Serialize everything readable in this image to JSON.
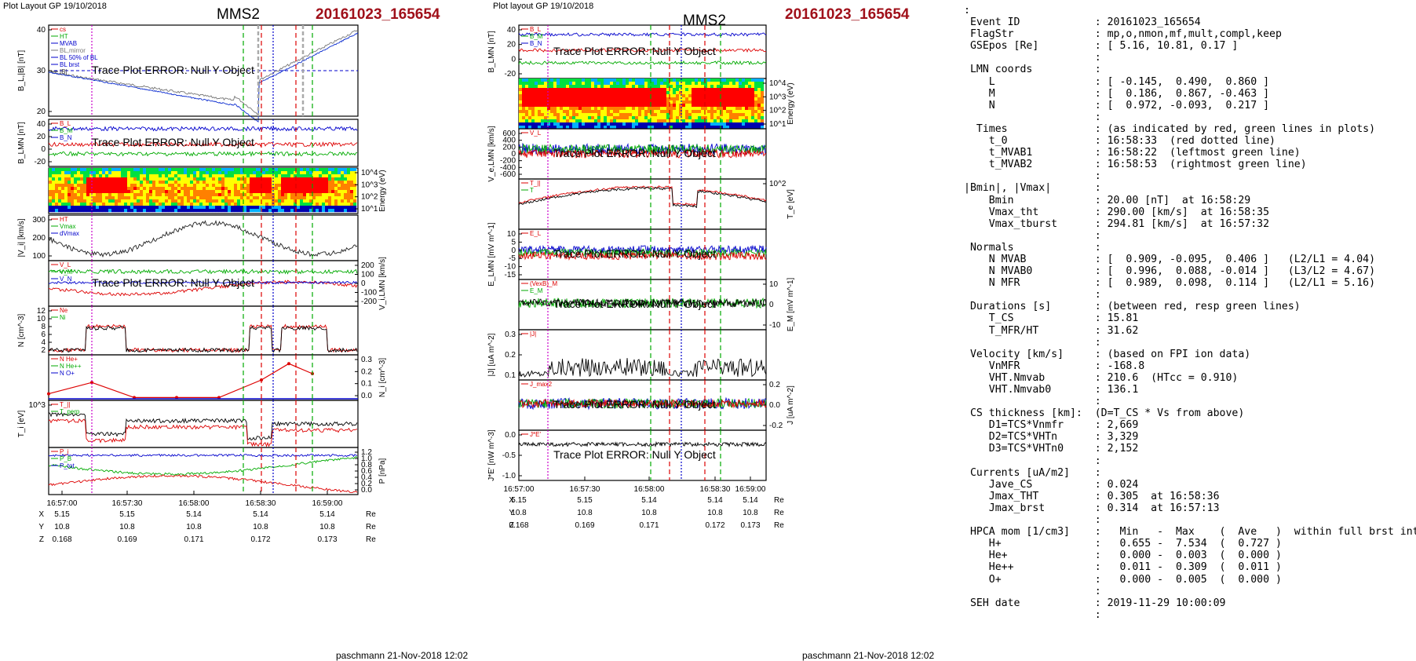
{
  "left": {
    "header": "Plot Layout GP 19/10/2018",
    "title": "MMS2",
    "event": "20161023_165654",
    "footer": "paschmann 21-Nov-2018 12:02",
    "time_ticks": [
      "16:57:00",
      "16:57:30",
      "16:58:00",
      "16:58:30",
      "16:59:00"
    ],
    "coords": {
      "X": [
        "5.15",
        "5.15",
        "5.14",
        "5.14",
        "5.14"
      ],
      "Y": [
        "10.8",
        "10.8",
        "10.8",
        "10.8",
        "10.8"
      ],
      "Z": [
        "0.168",
        "0.169",
        "0.171",
        "0.172",
        "0.173"
      ],
      "unit": "Re"
    },
    "panels": [
      {
        "id": "bl",
        "ylabel": "B_L,|B| [nT]",
        "yticks": [
          "40",
          "30",
          "20"
        ],
        "legend": [
          "cs",
          "HT",
          "MVAB",
          "BL,mirror",
          "BL 50% of BL",
          "BL brst",
          "|B|"
        ],
        "error": "Trace Plot ERROR: Null Y Object"
      },
      {
        "id": "blmn",
        "ylabel": "B_LMN [nT]",
        "yticks": [
          "40",
          "20",
          "0",
          "-20"
        ],
        "legend": [
          "B_L",
          "B_M",
          "B_N"
        ],
        "error": "Trace Plot ERROR: Null Y Object"
      },
      {
        "id": "spec",
        "ylabel_right": "Energy (eV)",
        "yticks_right": [
          "10^4",
          "10^3",
          "10^2",
          "10^1"
        ]
      },
      {
        "id": "vi",
        "ylabel": "|V_i| [km/s]",
        "yticks": [
          "300",
          "200",
          "100"
        ],
        "legend": [
          "HT",
          "Vmax",
          "dVmax"
        ]
      },
      {
        "id": "vilmn",
        "ylabel_right": "V_i,LMN [km/s]",
        "yticks_right": [
          "200",
          "100",
          "0",
          "-100",
          "-200"
        ],
        "legend": [
          "V_L",
          "V_M",
          "V_N"
        ],
        "error": "Trace Plot ERROR: Null Y Object"
      },
      {
        "id": "n",
        "ylabel": "N [cm^-3]",
        "yticks": [
          "12",
          "10",
          "8",
          "6",
          "4",
          "2"
        ],
        "legend": [
          "Ne",
          "Ni"
        ]
      },
      {
        "id": "ni",
        "ylabel_right": "N_i [cm^-3]",
        "yticks_right": [
          "0.3",
          "0.2",
          "0.1",
          "0.0"
        ],
        "legend": [
          "N He+",
          "N He++",
          "N O+"
        ]
      },
      {
        "id": "ti",
        "ylabel": "T_i [eV]",
        "yticks": [
          "10^3"
        ],
        "legend": [
          "T_||",
          "T_perp"
        ]
      },
      {
        "id": "p",
        "ylabel_right": "P [nPa]",
        "yticks_right": [
          "1.2",
          "1.0",
          "0.8",
          "0.6",
          "0.4",
          "0.2",
          "0.0"
        ],
        "legend": [
          "P_i",
          "P_B",
          "P_tot"
        ]
      }
    ]
  },
  "middle": {
    "header": "Plot layout GP 19/10/2018",
    "title": "MMS2",
    "event": "20161023_165654",
    "footer": "paschmann 21-Nov-2018 12:02",
    "time_ticks": [
      "16:57:00",
      "16:57:30",
      "16:58:00",
      "16:58:30",
      "16:59:00"
    ],
    "coords": {
      "X": [
        "5.15",
        "5.15",
        "5.14",
        "5.14",
        "5.14"
      ],
      "Y": [
        "10.8",
        "10.8",
        "10.8",
        "10.8",
        "10.8"
      ],
      "Z": [
        "0.168",
        "0.169",
        "0.171",
        "0.172",
        "0.173"
      ],
      "unit": "Re"
    },
    "panels": [
      {
        "id": "blmn",
        "ylabel": "B_LMN [nT]",
        "yticks": [
          "40",
          "20",
          "0",
          "-20"
        ],
        "legend": [
          "B_L",
          "B_M",
          "B_N"
        ],
        "error": "Trace Plot ERROR: Null Y Object"
      },
      {
        "id": "espec",
        "ylabel_right": "Energy (eV)",
        "yticks_right": [
          "10^4",
          "10^3",
          "10^2",
          "10^1"
        ]
      },
      {
        "id": "ve",
        "ylabel": "V_e,LMN [km/s]",
        "yticks": [
          "600",
          "400",
          "200",
          "0",
          "-200",
          "-400",
          "-600"
        ],
        "legend": [
          "V_L"
        ],
        "error": "Trace Plot ERROR: Null Y Object"
      },
      {
        "id": "te",
        "ylabel_right": "T_e [eV]",
        "yticks_right": [
          "10^2"
        ],
        "legend": [
          "T_||",
          "T"
        ]
      },
      {
        "id": "e",
        "ylabel": "E_LMN [mV m^-1]",
        "yticks": [
          "10",
          "5",
          "0",
          "-5",
          "-10",
          "-15"
        ],
        "legend": [
          "E_L"
        ],
        "error": "Trace Plot ERROR: Null Y Object"
      },
      {
        "id": "em",
        "ylabel_right": "E_M [mV m^-1]",
        "yticks_right": [
          "10",
          "0",
          "-10"
        ],
        "legend": [
          "(VexB)_M",
          "E_M"
        ],
        "error": "Trace Plot ERROR: Null Y Object"
      },
      {
        "id": "j",
        "ylabel": "|J| [uA m^-2]",
        "yticks": [
          "0.3",
          "0.2",
          "0.1"
        ],
        "legend": [
          "|J|"
        ]
      },
      {
        "id": "jlmn",
        "ylabel_right": "J [uA m^-2]",
        "yticks_right": [
          "0.2",
          "0.0",
          "-0.2"
        ],
        "legend": [
          "J_max2"
        ],
        "error": "Trace Plot ERROR: Null Y Object"
      },
      {
        "id": "je",
        "ylabel": "J*E' [nW m^-3]",
        "yticks": [
          "0.0",
          "-0.5",
          "-1.0"
        ],
        "legend": [
          "J*E'"
        ],
        "error": "Trace Plot ERROR: Null Y Object"
      }
    ]
  },
  "info": [
    ":",
    " Event ID            : 20161023_165654",
    " FlagStr             : mp,o,nmon,mf,mult,compl,keep",
    " GSEpos [Re]         : [ 5.16, 10.81, 0.17 ]",
    "                     :",
    " LMN coords          :",
    "    L                : [ -0.145,  0.490,  0.860 ]",
    "    M                : [  0.186,  0.867, -0.463 ]",
    "    N                : [  0.972, -0.093,  0.217 ]",
    "                     :",
    "  Times              : (as indicated by red, green lines in plots)",
    "    t_0              : 16:58:33  (red dotted line)",
    "    t_MVAB1          : 16:58:22  (leftmost green line)",
    "    t_MVAB2          : 16:58:53  (rightmost green line)",
    "                     :",
    "|Bmin|, |Vmax|       :",
    "    Bmin             : 20.00 [nT]  at 16:58:29",
    "    Vmax_tht         : 290.00 [km/s]  at 16:58:35",
    "    Vmax_tburst      : 294.81 [km/s]  at 16:57:32",
    "                     :",
    " Normals             :",
    "    N MVAB           : [  0.909, -0.095,  0.406 ]   (L2/L1 = 4.04)",
    "    N MVAB0          : [  0.996,  0.088, -0.014 ]   (L3/L2 = 4.67)",
    "    N MFR            : [  0.989,  0.098,  0.114 ]   (L2/L1 = 5.16)",
    "                     :",
    " Durations [s]       : (between red, resp green lines)",
    "    T_CS             : 15.81",
    "    T_MFR/HT         : 31.62",
    "                     :",
    " Velocity [km/s]     : (based on FPI ion data)",
    "    VnMFR            : -168.8",
    "    VHT.Nmvab        : 210.6  (HTcc = 0.910)",
    "    VHT.Nmvab0       : 136.1",
    "                     :",
    " CS thickness [km]:  (D=T_CS * Vs from above)",
    "    D1=TCS*Vnmfr     : 2,669",
    "    D2=TCS*VHTn      : 3,329",
    "    D3=TCS*VHTn0     : 2,152",
    "                     :",
    " Currents [uA/m2]    :",
    "    Jave_CS          : 0.024",
    "    Jmax_THT         : 0.305  at 16:58:36",
    "    Jmax_brst        : 0.314  at 16:57:13",
    "                     :",
    " HPCA mom [1/cm3]    :   Min   -  Max    (  Ave   )  within full brst int",
    "    H+               :   0.655 -  7.534  (  0.727 )",
    "    He+              :   0.000 -  0.003  (  0.000 )",
    "    He++             :   0.011 -  0.309  (  0.011 )",
    "    O+               :   0.000 -  0.005  (  0.000 )",
    "                     :",
    " SEH date            : 2019-11-29 10:00:09",
    "                     :"
  ],
  "chart_data": [
    {
      "type": "line",
      "name": "left-stack",
      "x_ticks": [
        "16:57:00",
        "16:57:30",
        "16:58:00",
        "16:58:30",
        "16:59:00"
      ],
      "markers": {
        "magenta_dotted": "16:57:13",
        "green_dashed": [
          "16:58:22",
          "16:58:53"
        ],
        "red_dashed": [
          "16:58:31",
          "16:58:47"
        ],
        "blue_dotted": "16:58:36"
      },
      "ni_he_plus_plus": {
        "x": [
          "16:56:53",
          "16:57:16",
          "16:57:38",
          "16:57:59",
          "16:58:21",
          "16:58:31",
          "16:58:43",
          "16:58:53"
        ],
        "values": [
          0.04,
          0.13,
          0.01,
          0.01,
          0.01,
          0.15,
          0.28,
          0.2
        ]
      }
    },
    {
      "type": "line",
      "name": "middle-stack",
      "x_ticks": [
        "16:57:00",
        "16:57:30",
        "16:58:00",
        "16:58:30",
        "16:59:00"
      ]
    },
    {
      "type": "heatmap",
      "name": "ion-spectrogram",
      "ylabel": "Energy (eV)",
      "colors": [
        "#0000b0",
        "#00b0ff",
        "#00e040",
        "#ffff00",
        "#ff8000",
        "#ff0000"
      ]
    }
  ]
}
